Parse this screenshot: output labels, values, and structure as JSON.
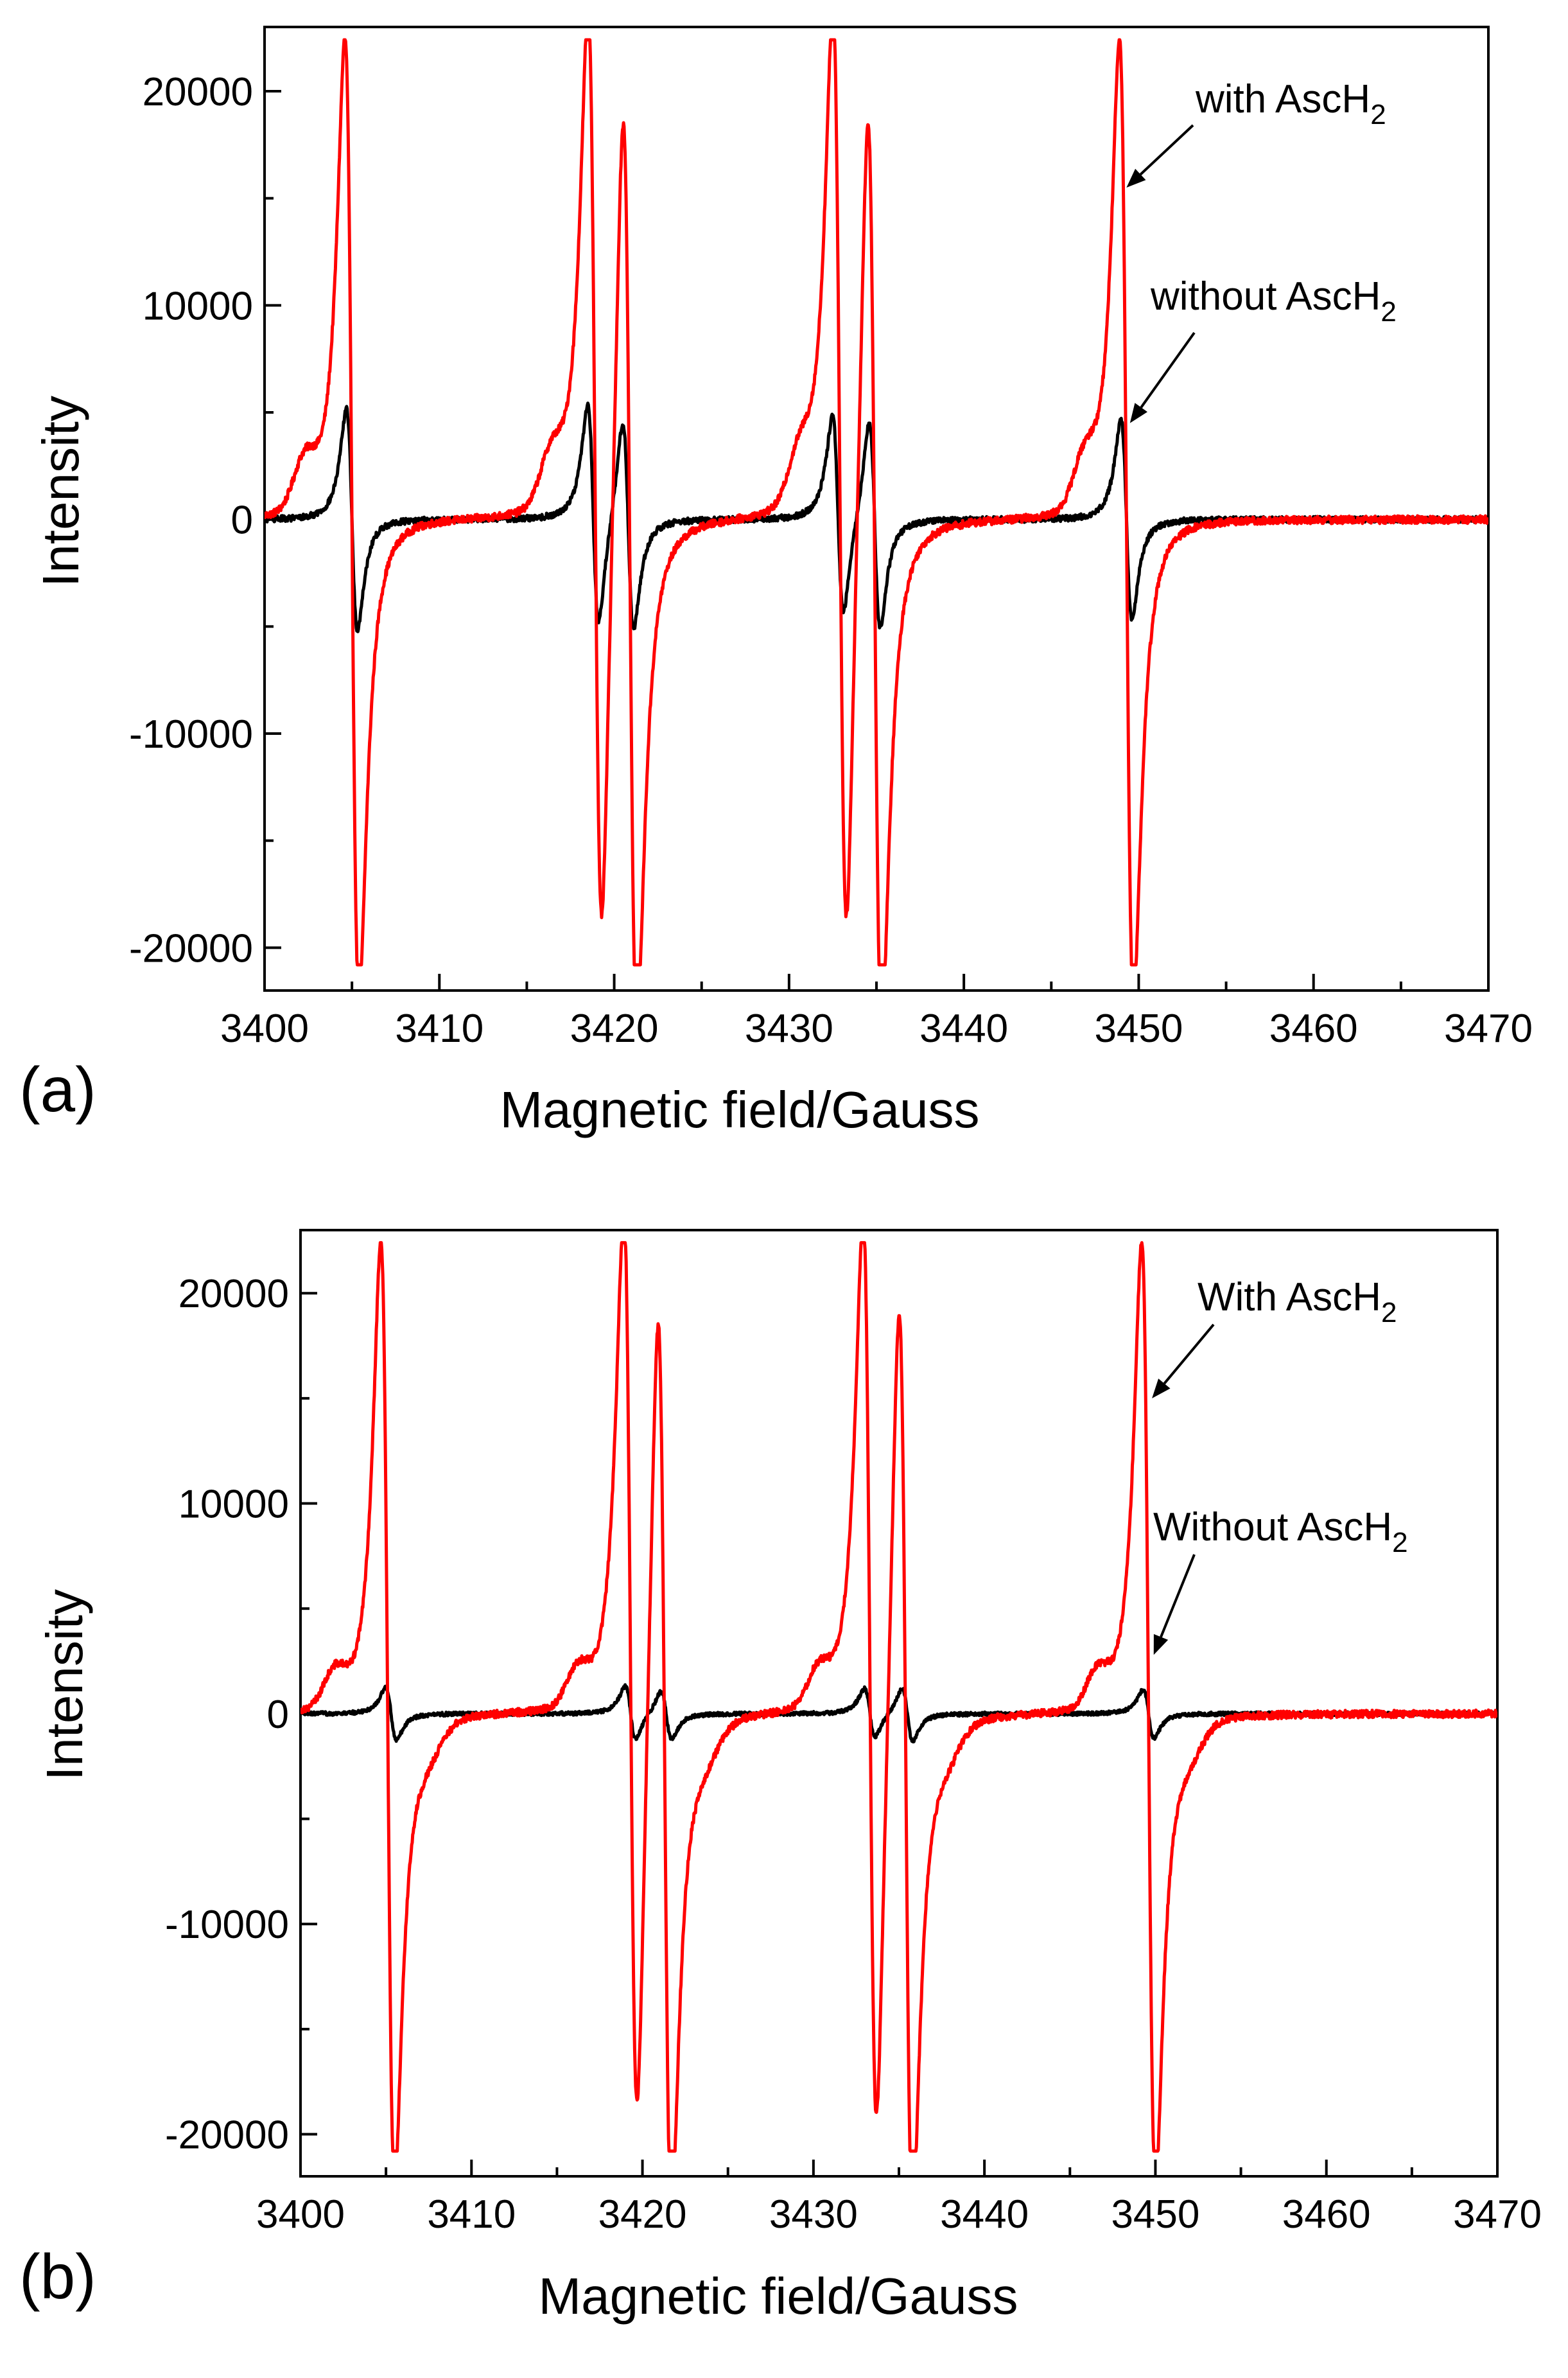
{
  "figure": {
    "colors": {
      "with": "#ff0000",
      "without": "#000000",
      "axis": "#000000",
      "background": "#ffffff"
    }
  },
  "chart_data": [
    {
      "type": "line",
      "panel_label": "(a)",
      "xlabel": "Magnetic field/Gauss",
      "ylabel": "Intensity",
      "xlim": [
        3400,
        3470
      ],
      "ylim": [
        -22000,
        23000
      ],
      "x_ticks": [
        3400,
        3410,
        3420,
        3430,
        3440,
        3450,
        3460,
        3470
      ],
      "x_tick_labels": [
        "3400",
        "3410",
        "3420",
        "3430",
        "3440",
        "3450",
        "3460",
        "3470"
      ],
      "y_ticks": [
        -20000,
        -10000,
        0,
        10000,
        20000
      ],
      "y_tick_labels": [
        "-20000",
        "-10000",
        "0",
        "10000",
        "20000"
      ],
      "series": [
        {
          "name": "with AscH2",
          "color": "#ff0000",
          "clip": [
            -20800,
            22400
          ],
          "lines": [
            {
              "center": 3405.0,
              "width": 0.7,
              "amp": 45000
            },
            {
              "center": 3418.9,
              "width": 0.7,
              "amp": 45000
            },
            {
              "center": 3420.9,
              "width": 0.7,
              "amp": 45000
            },
            {
              "center": 3432.9,
              "width": 0.7,
              "amp": 45000
            },
            {
              "center": 3434.9,
              "width": 0.7,
              "amp": 45000
            },
            {
              "center": 3449.3,
              "width": 0.7,
              "amp": 45000
            }
          ],
          "side_bumps": [
            {
              "center": 3402.3,
              "width": 0.9,
              "amp": 2200
            },
            {
              "center": 3416.4,
              "width": 0.9,
              "amp": 2200
            },
            {
              "center": 3430.6,
              "width": 0.9,
              "amp": 2200
            },
            {
              "center": 3446.9,
              "width": 0.9,
              "amp": 2200
            }
          ],
          "noise": 180
        },
        {
          "name": "without AscH2",
          "color": "#000000",
          "clip": null,
          "lines": [
            {
              "center": 3405.0,
              "width": 0.55,
              "amp": 10300
            },
            {
              "center": 3418.8,
              "width": 0.55,
              "amp": 10300
            },
            {
              "center": 3420.8,
              "width": 0.55,
              "amp": 9800
            },
            {
              "center": 3432.8,
              "width": 0.55,
              "amp": 9300
            },
            {
              "center": 3434.9,
              "width": 0.55,
              "amp": 9700
            },
            {
              "center": 3449.3,
              "width": 0.55,
              "amp": 9300
            }
          ],
          "side_bumps": [],
          "noise": 140
        }
      ],
      "annotations": [
        {
          "text": "with AscH",
          "subscript": "2",
          "points_to": [
            3449.3,
            15500
          ]
        },
        {
          "text": "without AscH",
          "subscript": "2",
          "points_to": [
            3449.5,
            4500
          ]
        }
      ]
    },
    {
      "type": "line",
      "panel_label": "(b)",
      "xlabel": "Magnetic field/Gauss",
      "ylabel": "Intensity",
      "xlim": [
        3400,
        3470
      ],
      "ylim": [
        -22000,
        23000
      ],
      "x_ticks": [
        3400,
        3410,
        3420,
        3430,
        3440,
        3450,
        3460,
        3470
      ],
      "x_tick_labels": [
        "3400",
        "3410",
        "3420",
        "3430",
        "3440",
        "3450",
        "3460",
        "3470"
      ],
      "y_ticks": [
        -20000,
        -10000,
        0,
        10000,
        20000
      ],
      "y_tick_labels": [
        "-20000",
        "-10000",
        "0",
        "10000",
        "20000"
      ],
      "series": [
        {
          "name": "With AscH2",
          "color": "#ff0000",
          "clip": [
            -20800,
            22400
          ],
          "lines": [
            {
              "center": 3405.1,
              "width": 0.7,
              "amp": 45000
            },
            {
              "center": 3419.3,
              "width": 0.7,
              "amp": 45000
            },
            {
              "center": 3421.3,
              "width": 0.7,
              "amp": 45000
            },
            {
              "center": 3433.3,
              "width": 0.7,
              "amp": 45000
            },
            {
              "center": 3435.4,
              "width": 0.7,
              "amp": 45000
            },
            {
              "center": 3449.6,
              "width": 0.7,
              "amp": 45000
            }
          ],
          "side_bumps": [
            {
              "center": 3402.0,
              "width": 0.9,
              "amp": 1600
            },
            {
              "center": 3416.2,
              "width": 0.9,
              "amp": 1600
            },
            {
              "center": 3430.3,
              "width": 0.9,
              "amp": 1600
            },
            {
              "center": 3446.6,
              "width": 0.9,
              "amp": 1600
            },
            {
              "center": 3407.4,
              "width": 1.2,
              "amp": -1300
            },
            {
              "center": 3423.6,
              "width": 1.2,
              "amp": -1300
            },
            {
              "center": 3437.7,
              "width": 1.2,
              "amp": -1300
            },
            {
              "center": 3451.9,
              "width": 1.2,
              "amp": -1300
            }
          ],
          "noise": 180
        },
        {
          "name": "Without AscH2",
          "color": "#000000",
          "clip": null,
          "lines": [
            {
              "center": 3405.3,
              "width": 0.55,
              "amp": 2500
            },
            {
              "center": 3419.3,
              "width": 0.55,
              "amp": 2500
            },
            {
              "center": 3421.4,
              "width": 0.55,
              "amp": 2300
            },
            {
              "center": 3433.3,
              "width": 0.55,
              "amp": 2300
            },
            {
              "center": 3435.5,
              "width": 0.55,
              "amp": 2500
            },
            {
              "center": 3449.6,
              "width": 0.55,
              "amp": 2300
            }
          ],
          "side_bumps": [],
          "noise": 90
        }
      ],
      "annotations": [
        {
          "text": "With AscH",
          "subscript": "2",
          "points_to": [
            3449.8,
            15000
          ]
        },
        {
          "text": "Without AscH",
          "subscript": "2",
          "points_to": [
            3449.9,
            2800
          ]
        }
      ]
    }
  ]
}
